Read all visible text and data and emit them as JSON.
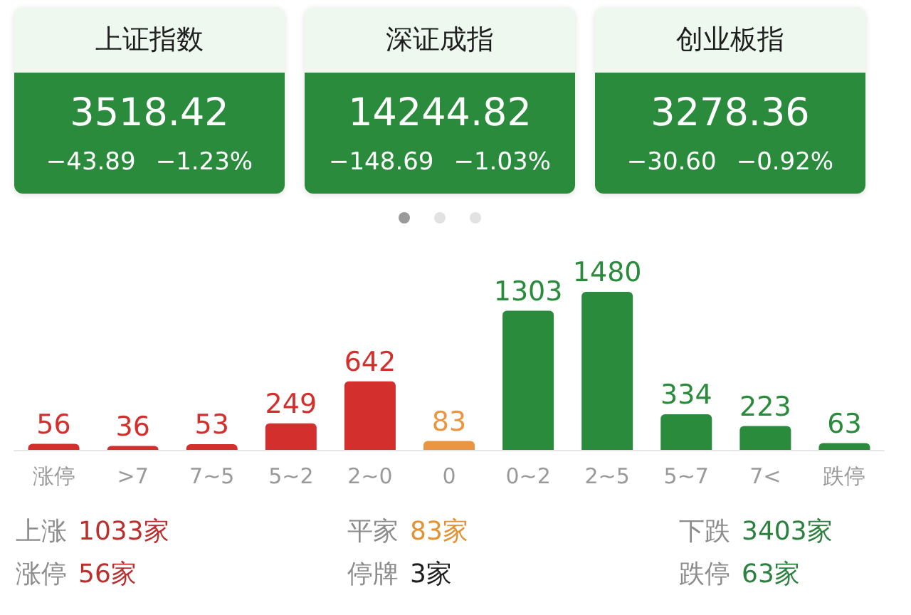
{
  "chart_data": [
    {
      "type": "other",
      "title": "上证指数",
      "values": [
        3518.42
      ],
      "data_labels": true,
      "annotations": [
        "−43.89",
        "−1.23%"
      ],
      "color": "#2a8b3c"
    },
    {
      "type": "other",
      "title": "深证成指",
      "values": [
        14244.82
      ],
      "data_labels": true,
      "annotations": [
        "−148.69",
        "−1.03%"
      ],
      "color": "#2a8b3c"
    },
    {
      "type": "other",
      "title": "创业板指",
      "values": [
        3278.36
      ],
      "data_labels": true,
      "annotations": [
        "−30.60",
        "−0.92%"
      ],
      "color": "#2a8b3c"
    },
    {
      "type": "bar",
      "categories": [
        "涨停",
        ">7",
        "7~5",
        "5~2",
        "2~0",
        "0",
        "0~2",
        "2~5",
        "5~7",
        "7<",
        "跌停"
      ],
      "values": [
        56,
        36,
        53,
        249,
        642,
        83,
        1303,
        1480,
        334,
        223,
        63
      ],
      "colors": [
        "#d22f2d",
        "#d22f2d",
        "#d22f2d",
        "#d22f2d",
        "#d22f2d",
        "#ea9640",
        "#2a8b3c",
        "#2a8b3c",
        "#2a8b3c",
        "#2a8b3c",
        "#2a8b3c"
      ],
      "data_labels": true,
      "tick_labels": "x"
    },
    {
      "type": "other",
      "categories": [
        "上涨",
        "平家",
        "下跌",
        "涨停",
        "停牌",
        "跌停"
      ],
      "value_labels": [
        "1033家",
        "83家",
        "3403家",
        "56家",
        "3家",
        "63家"
      ],
      "colors": [
        "#b9302e",
        "#e39232",
        "#2e8040",
        "#b9302e",
        "#1e1e1e",
        "#2e8040"
      ]
    }
  ]
}
